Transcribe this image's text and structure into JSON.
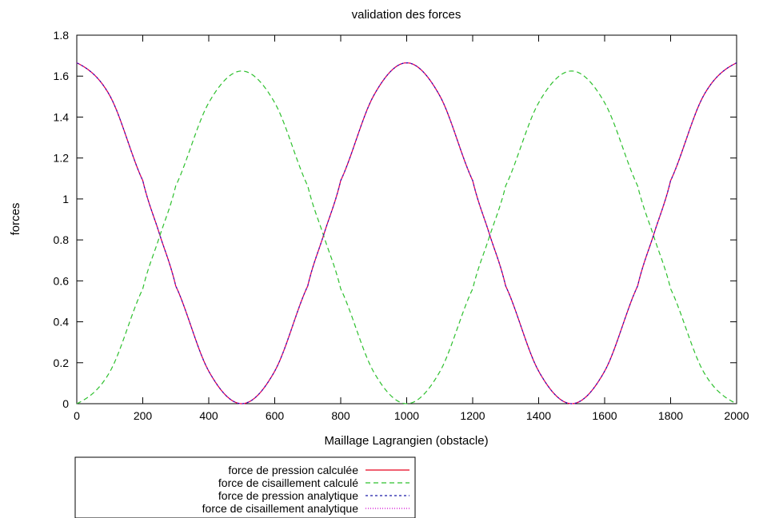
{
  "chart_data": {
    "type": "line",
    "title": "validation des forces",
    "xlabel": "Maillage Lagrangien (obstacle)",
    "ylabel": "forces",
    "xlim": [
      0,
      2000
    ],
    "ylim": [
      0,
      1.8
    ],
    "xticks": [
      "0",
      "200",
      "400",
      "600",
      "800",
      "1000",
      "1200",
      "1400",
      "1600",
      "1800",
      "2000"
    ],
    "yticks": [
      "0",
      "0.2",
      "0.4",
      "0.6",
      "0.8",
      "1",
      "1.2",
      "1.4",
      "1.6",
      "1.8"
    ],
    "grid": false,
    "legend_position": "bottom-left",
    "x": [
      0,
      100,
      200,
      250,
      300,
      400,
      500,
      600,
      700,
      750,
      800,
      900,
      1000,
      1100,
      1200,
      1250,
      1300,
      1400,
      1500,
      1600,
      1700,
      1750,
      1800,
      1900,
      2000
    ],
    "series": [
      {
        "name": "force de pression calculée",
        "color": "#e8001c",
        "dash": "",
        "values": [
          1.665,
          1.505,
          1.09,
          0.8325,
          0.575,
          0.159,
          0.0,
          0.159,
          0.575,
          0.8325,
          1.09,
          1.505,
          1.665,
          1.505,
          1.09,
          0.8325,
          0.575,
          0.159,
          0.0,
          0.159,
          0.575,
          0.8325,
          1.09,
          1.505,
          1.665
        ]
      },
      {
        "name": "force de cisaillement calculé",
        "color": "#2ec02e",
        "dash": "6,4",
        "values": [
          0.0,
          0.155,
          0.561,
          0.812,
          1.064,
          1.47,
          1.625,
          1.47,
          1.064,
          0.812,
          0.561,
          0.155,
          0.0,
          0.155,
          0.561,
          0.812,
          1.064,
          1.47,
          1.625,
          1.47,
          1.064,
          0.812,
          0.561,
          0.155,
          0.0
        ]
      },
      {
        "name": "force de pression analytique",
        "color": "#1a1aa8",
        "dash": "3,3",
        "values": [
          1.665,
          1.505,
          1.09,
          0.8325,
          0.575,
          0.159,
          0.0,
          0.159,
          0.575,
          0.8325,
          1.09,
          1.505,
          1.665,
          1.505,
          1.09,
          0.8325,
          0.575,
          0.159,
          0.0,
          0.159,
          0.575,
          0.8325,
          1.09,
          1.505,
          1.665
        ]
      },
      {
        "name": "force de cisaillement analytique",
        "color": "#d000d0",
        "dash": "1,2",
        "values": [
          1.665,
          1.505,
          1.09,
          0.8325,
          0.575,
          0.159,
          0.0,
          0.159,
          0.575,
          0.8325,
          1.09,
          1.505,
          1.665,
          1.505,
          1.09,
          0.8325,
          0.575,
          0.159,
          0.0,
          0.159,
          0.575,
          0.8325,
          1.09,
          1.505,
          1.665
        ]
      }
    ]
  }
}
